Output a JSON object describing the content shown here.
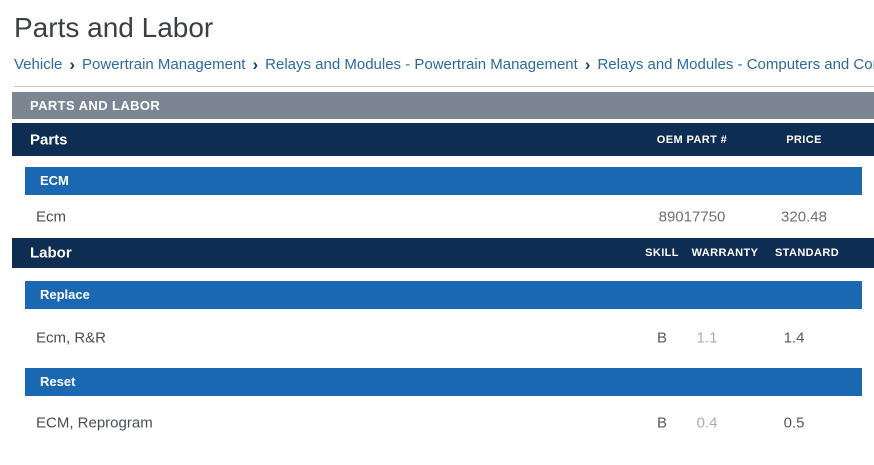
{
  "page": {
    "title": "Parts and Labor"
  },
  "breadcrumb": {
    "separator": "›",
    "items": [
      "Vehicle",
      "Powertrain Management",
      "Relays and Modules - Powertrain Management",
      "Relays and Modules - Computers and Control Sys"
    ]
  },
  "section_header": "PARTS AND LABOR",
  "parts": {
    "title": "Parts",
    "columns": {
      "oem": "OEM PART #",
      "price": "PRICE"
    },
    "group_label": "ECM",
    "rows": [
      {
        "name": "Ecm",
        "oem": "89017750",
        "price": "320.48"
      }
    ]
  },
  "labor": {
    "title": "Labor",
    "columns": {
      "skill": "SKILL",
      "warranty": "WARRANTY",
      "standard": "STANDARD"
    },
    "groups": [
      {
        "label": "Replace",
        "rows": [
          {
            "name": "Ecm, R&R",
            "skill": "B",
            "warranty": "1.1",
            "standard": "1.4"
          }
        ]
      },
      {
        "label": "Reset",
        "rows": [
          {
            "name": "ECM, Reprogram",
            "skill": "B",
            "warranty": "0.4",
            "standard": "0.5"
          }
        ]
      }
    ]
  },
  "colors": {
    "navy_bar": "#0e2d52",
    "blue_bar": "#1a68b2",
    "gray_bar": "#7c8693",
    "breadcrumb_link": "#2b6a9e",
    "warranty_muted_text": "#abaeb1"
  }
}
